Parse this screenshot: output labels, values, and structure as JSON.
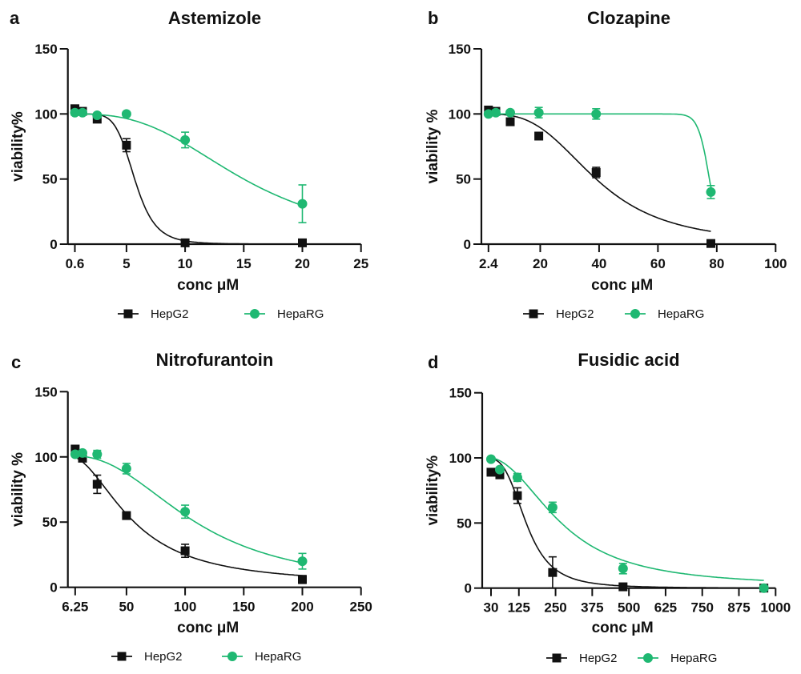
{
  "colors": {
    "HepG2": "#111111",
    "HepaRG": "#1fb872"
  },
  "chart_data": [
    {
      "panel": "a",
      "type": "scatter",
      "title": "Astemizole",
      "xlabel": "conc μM",
      "ylabel": "viability%",
      "xlim": [
        0,
        25
      ],
      "ylim": [
        0,
        150
      ],
      "xticks": [
        0.6,
        5,
        10,
        15,
        20,
        25
      ],
      "yticks": [
        0,
        50,
        100,
        150
      ],
      "legend_placement": "bottom",
      "grid": false,
      "series": [
        {
          "name": "HepG2",
          "marker": "square",
          "x": [
            0.6,
            1.25,
            2.5,
            5,
            10,
            20
          ],
          "y": [
            104,
            102,
            96,
            76,
            1,
            1
          ],
          "err": [
            2,
            2,
            2,
            5,
            0,
            0
          ]
        },
        {
          "name": "HepaRG",
          "marker": "circle",
          "x": [
            0.6,
            1.25,
            2.5,
            5,
            10,
            20
          ],
          "y": [
            101,
            101,
            99,
            100,
            80,
            31
          ],
          "err": [
            2,
            1,
            1,
            1,
            6,
            14.5
          ]
        }
      ]
    },
    {
      "panel": "b",
      "type": "scatter",
      "title": "Clozapine",
      "xlabel": "conc μM",
      "ylabel": "viability %",
      "xlim": [
        0,
        100
      ],
      "ylim": [
        0,
        150
      ],
      "xticks": [
        2.4,
        20,
        40,
        60,
        80,
        100
      ],
      "yticks": [
        0,
        50,
        100,
        150
      ],
      "legend_placement": "bottom",
      "grid": false,
      "series": [
        {
          "name": "HepG2",
          "marker": "square",
          "x": [
            2.4,
            4.9,
            9.8,
            19.5,
            39,
            78
          ],
          "y": [
            103,
            102,
            94,
            83,
            55,
            0.5
          ],
          "err": [
            2,
            2,
            0,
            0,
            4,
            0
          ]
        },
        {
          "name": "HepaRG",
          "marker": "circle",
          "x": [
            2.4,
            4.9,
            9.8,
            19.5,
            39,
            78
          ],
          "y": [
            100,
            101,
            101,
            101,
            100,
            40
          ],
          "err": [
            1,
            2,
            1,
            4,
            4,
            5
          ]
        }
      ]
    },
    {
      "panel": "c",
      "type": "scatter",
      "title": "Nitrofurantoin",
      "xlabel": "conc μM",
      "ylabel": "viability %",
      "xlim": [
        0,
        250
      ],
      "ylim": [
        0,
        150
      ],
      "xticks": [
        6.25,
        50,
        100,
        150,
        200,
        250
      ],
      "yticks": [
        0,
        50,
        100,
        150
      ],
      "legend_placement": "bottom",
      "grid": false,
      "series": [
        {
          "name": "HepG2",
          "marker": "square",
          "x": [
            6.25,
            12.5,
            25,
            50,
            100,
            200
          ],
          "y": [
            106,
            99,
            79,
            55,
            28,
            6
          ],
          "err": [
            1,
            1,
            7,
            1,
            5,
            3
          ]
        },
        {
          "name": "HepaRG",
          "marker": "circle",
          "x": [
            6.25,
            12.5,
            25,
            50,
            100,
            200
          ],
          "y": [
            102,
            103,
            102,
            91,
            58,
            20
          ],
          "err": [
            1,
            1,
            3,
            4,
            5,
            6
          ]
        }
      ]
    },
    {
      "panel": "d",
      "type": "scatter",
      "title": "Fusidic acid",
      "xlabel": "conc μM",
      "ylabel": "viability%",
      "xlim": [
        0,
        1000
      ],
      "ylim": [
        0,
        150
      ],
      "xticks": [
        30,
        125,
        250,
        375,
        500,
        625,
        750,
        875,
        1000
      ],
      "yticks": [
        0,
        50,
        100,
        150
      ],
      "legend_placement": "bottom",
      "grid": false,
      "series": [
        {
          "name": "HepG2",
          "marker": "square",
          "x": [
            30,
            60,
            120,
            240,
            480,
            960
          ],
          "y": [
            89,
            87,
            71,
            12,
            1,
            0
          ],
          "err": [
            1,
            1,
            6,
            12,
            0,
            0
          ]
        },
        {
          "name": "HepaRG",
          "marker": "circle",
          "x": [
            30,
            60,
            120,
            240,
            480,
            960
          ],
          "y": [
            99,
            91,
            85,
            62,
            15,
            0
          ],
          "err": [
            1,
            1,
            3,
            4,
            4,
            1
          ]
        }
      ]
    }
  ]
}
